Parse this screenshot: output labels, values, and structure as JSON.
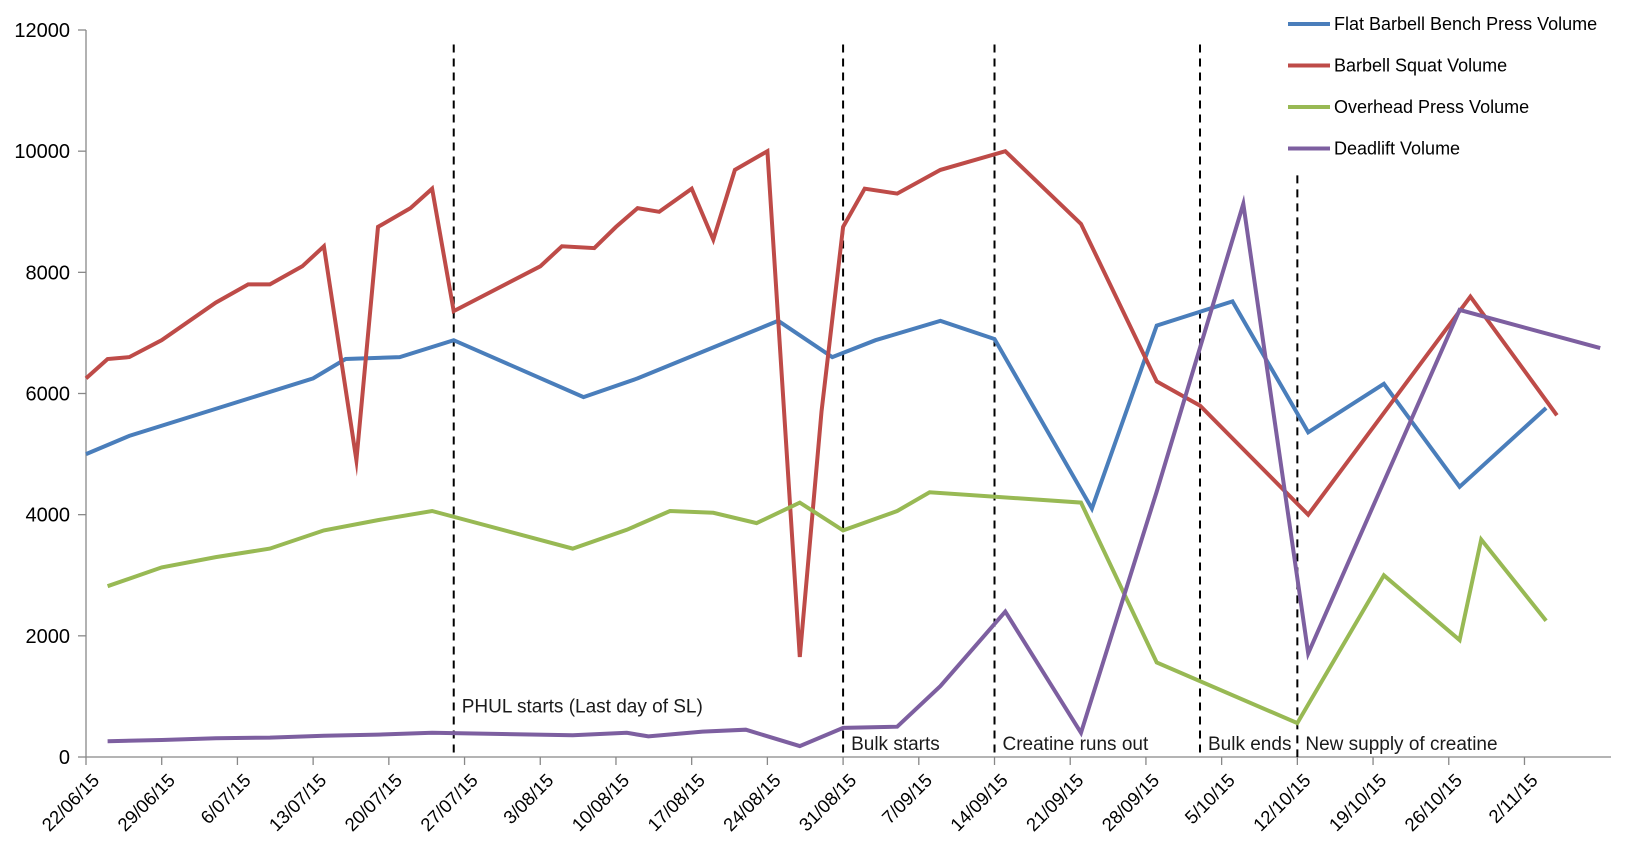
{
  "chart_data": {
    "type": "line",
    "title": "",
    "xlabel": "",
    "ylabel": "",
    "ylim": [
      0,
      12000
    ],
    "yticks": [
      0,
      2000,
      4000,
      6000,
      8000,
      10000,
      12000
    ],
    "xlim": [
      "2015-06-22",
      "2015-11-10"
    ],
    "xticks": [
      "2015-06-22",
      "2015-06-29",
      "2015-07-06",
      "2015-07-13",
      "2015-07-20",
      "2015-07-27",
      "2015-08-03",
      "2015-08-10",
      "2015-08-17",
      "2015-08-24",
      "2015-08-31",
      "2015-09-07",
      "2015-09-14",
      "2015-09-21",
      "2015-09-28",
      "2015-10-05",
      "2015-10-12",
      "2015-10-19",
      "2015-10-26",
      "2015-11-02"
    ],
    "xtick_labels": [
      "22/06/15",
      "29/06/15",
      "6/07/15",
      "13/07/15",
      "20/07/15",
      "27/07/15",
      "3/08/15",
      "10/08/15",
      "17/08/15",
      "24/08/15",
      "31/08/15",
      "7/09/15",
      "14/09/15",
      "21/09/15",
      "28/09/15",
      "5/10/15",
      "12/10/15",
      "19/10/15",
      "26/10/15",
      "2/11/15"
    ],
    "grid": false,
    "legend_position": "top-right",
    "series": [
      {
        "name": "Flat Barbell Bench Press Volume",
        "color": "#4a7ebb",
        "points": [
          [
            "2015-06-22",
            5000
          ],
          [
            "2015-06-26",
            5300
          ],
          [
            "2015-07-13",
            6250
          ],
          [
            "2015-07-16",
            6570
          ],
          [
            "2015-07-21",
            6600
          ],
          [
            "2015-07-26",
            6880
          ],
          [
            "2015-08-07",
            5940
          ],
          [
            "2015-08-12",
            6250
          ],
          [
            "2015-08-25",
            7200
          ],
          [
            "2015-08-30",
            6600
          ],
          [
            "2015-09-03",
            6880
          ],
          [
            "2015-09-09",
            7200
          ],
          [
            "2015-09-14",
            6900
          ],
          [
            "2015-09-23",
            4100
          ],
          [
            "2015-09-29",
            7120
          ],
          [
            "2015-10-06",
            7520
          ],
          [
            "2015-10-13",
            5360
          ],
          [
            "2015-10-20",
            6160
          ],
          [
            "2015-10-27",
            4460
          ],
          [
            "2015-11-04",
            5760
          ]
        ]
      },
      {
        "name": "Barbell Squat Volume",
        "color": "#be4b48",
        "points": [
          [
            "2015-06-22",
            6250
          ],
          [
            "2015-06-24",
            6570
          ],
          [
            "2015-06-26",
            6600
          ],
          [
            "2015-06-29",
            6880
          ],
          [
            "2015-07-04",
            7500
          ],
          [
            "2015-07-07",
            7800
          ],
          [
            "2015-07-09",
            7800
          ],
          [
            "2015-07-12",
            8100
          ],
          [
            "2015-07-14",
            8430
          ],
          [
            "2015-07-17",
            4900
          ],
          [
            "2015-07-19",
            8750
          ],
          [
            "2015-07-22",
            9060
          ],
          [
            "2015-07-24",
            9380
          ],
          [
            "2015-07-26",
            7360
          ],
          [
            "2015-08-03",
            8100
          ],
          [
            "2015-08-05",
            8430
          ],
          [
            "2015-08-08",
            8400
          ],
          [
            "2015-08-10",
            8750
          ],
          [
            "2015-08-12",
            9060
          ],
          [
            "2015-08-14",
            9000
          ],
          [
            "2015-08-17",
            9380
          ],
          [
            "2015-08-19",
            8540
          ],
          [
            "2015-08-21",
            9690
          ],
          [
            "2015-08-24",
            10000
          ],
          [
            "2015-08-27",
            1650
          ],
          [
            "2015-08-29",
            5700
          ],
          [
            "2015-08-31",
            8750
          ],
          [
            "2015-09-02",
            9380
          ],
          [
            "2015-09-05",
            9300
          ],
          [
            "2015-09-09",
            9690
          ],
          [
            "2015-09-15",
            10000
          ],
          [
            "2015-09-22",
            8800
          ],
          [
            "2015-09-29",
            6200
          ],
          [
            "2015-10-03",
            5800
          ],
          [
            "2015-10-13",
            4000
          ],
          [
            "2015-10-28",
            7600
          ],
          [
            "2015-11-05",
            5640
          ]
        ]
      },
      {
        "name": "Overhead Press Volume",
        "color": "#98b954",
        "points": [
          [
            "2015-06-24",
            2820
          ],
          [
            "2015-06-29",
            3130
          ],
          [
            "2015-07-04",
            3300
          ],
          [
            "2015-07-09",
            3440
          ],
          [
            "2015-07-14",
            3740
          ],
          [
            "2015-07-19",
            3910
          ],
          [
            "2015-07-24",
            4060
          ],
          [
            "2015-08-06",
            3440
          ],
          [
            "2015-08-11",
            3750
          ],
          [
            "2015-08-15",
            4060
          ],
          [
            "2015-08-19",
            4030
          ],
          [
            "2015-08-23",
            3860
          ],
          [
            "2015-08-27",
            4200
          ],
          [
            "2015-08-31",
            3740
          ],
          [
            "2015-09-05",
            4060
          ],
          [
            "2015-09-08",
            4370
          ],
          [
            "2015-09-22",
            4200
          ],
          [
            "2015-09-29",
            1560
          ],
          [
            "2015-10-12",
            560
          ],
          [
            "2015-10-20",
            3000
          ],
          [
            "2015-10-27",
            1930
          ],
          [
            "2015-10-29",
            3590
          ],
          [
            "2015-11-04",
            2250
          ]
        ]
      },
      {
        "name": "Deadlift Volume",
        "color": "#7d5fa0",
        "points": [
          [
            "2015-06-24",
            260
          ],
          [
            "2015-06-29",
            280
          ],
          [
            "2015-07-04",
            310
          ],
          [
            "2015-07-09",
            320
          ],
          [
            "2015-07-14",
            350
          ],
          [
            "2015-07-19",
            370
          ],
          [
            "2015-07-24",
            400
          ],
          [
            "2015-08-06",
            360
          ],
          [
            "2015-08-11",
            400
          ],
          [
            "2015-08-13",
            340
          ],
          [
            "2015-08-18",
            420
          ],
          [
            "2015-08-22",
            450
          ],
          [
            "2015-08-27",
            180
          ],
          [
            "2015-08-31",
            480
          ],
          [
            "2015-09-05",
            500
          ],
          [
            "2015-09-09",
            1170
          ],
          [
            "2015-09-15",
            2400
          ],
          [
            "2015-09-22",
            400
          ],
          [
            "2015-09-29",
            4380
          ],
          [
            "2015-10-07",
            9130
          ],
          [
            "2015-10-13",
            1710
          ],
          [
            "2015-10-27",
            7380
          ],
          [
            "2015-11-09",
            6750
          ]
        ]
      }
    ],
    "annotations": [
      {
        "date": "2015-07-26",
        "label": "PHUL starts (Last day of SL)",
        "line_top": 11760,
        "label_y": 850
      },
      {
        "date": "2015-08-31",
        "label": "Bulk starts",
        "line_top": 11760,
        "label_y": 230
      },
      {
        "date": "2015-09-14",
        "label": "Creatine runs out",
        "line_top": 11760,
        "label_y": 230
      },
      {
        "date": "2015-10-03",
        "label": "Bulk ends",
        "line_top": 11760,
        "label_y": 230
      },
      {
        "date": "2015-10-12",
        "label": "New supply of creatine",
        "line_top": 9600,
        "label_y": 230
      }
    ]
  }
}
